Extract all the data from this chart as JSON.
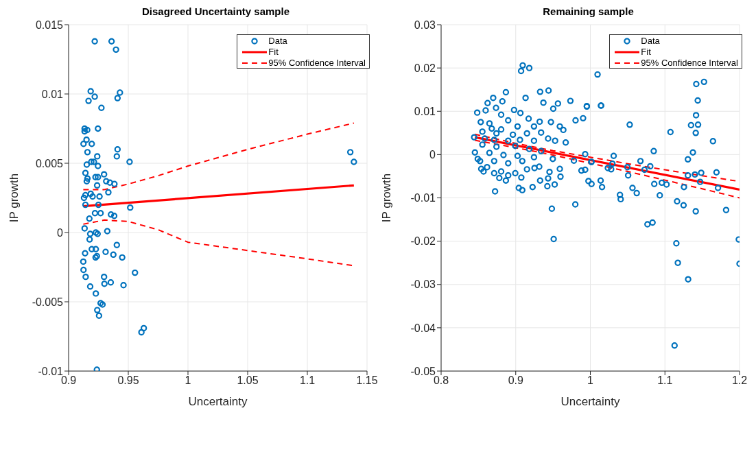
{
  "chart_data": [
    {
      "type": "scatter",
      "title": "Disagreed Uncertainty sample",
      "xlabel": "Uncertainty",
      "ylabel": "IP growth",
      "xlim": [
        0.9,
        1.15
      ],
      "xticks": [
        0.9,
        0.95,
        1,
        1.05,
        1.1,
        1.15
      ],
      "ylim": [
        -0.01,
        0.015
      ],
      "yticks": [
        -0.01,
        -0.005,
        0,
        0.005,
        0.01,
        0.015
      ],
      "grid": true,
      "legend": "top right",
      "series": [
        {
          "name": "Data",
          "marker": "circle",
          "color": "#0072bd",
          "x": [
            0.9219,
            0.936,
            0.9397,
            0.9185,
            0.9219,
            0.9167,
            0.9275,
            0.943,
            0.941,
            0.9134,
            0.9156,
            0.9134,
            0.9246,
            0.915,
            0.9125,
            0.9194,
            0.9158,
            0.924,
            0.941,
            0.9404,
            0.9511,
            0.9152,
            0.919,
            0.9212,
            0.9246,
            0.9141,
            0.9158,
            0.9152,
            0.9225,
            0.9246,
            0.9297,
            0.9315,
            0.9346,
            0.9384,
            0.9239,
            0.9333,
            0.9129,
            0.9141,
            0.9185,
            0.9201,
            0.9259,
            0.9141,
            0.925,
            0.9221,
            0.9268,
            0.9355,
            0.9382,
            0.9516,
            0.9174,
            0.9134,
            0.9228,
            0.9243,
            0.9181,
            0.9324,
            0.9176,
            0.9404,
            0.9194,
            0.9228,
            0.9237,
            0.9226,
            0.9138,
            0.931,
            0.9375,
            0.9449,
            0.9123,
            0.9125,
            0.9143,
            0.9297,
            0.93,
            0.9353,
            0.9556,
            0.946,
            0.9181,
            0.9228,
            0.9268,
            0.9284,
            0.924,
            0.9255,
            0.963,
            0.961,
            0.9237,
            1.136,
            1.139
          ],
          "values": [
            0.0138,
            0.0138,
            0.0132,
            0.0102,
            0.0098,
            0.0095,
            0.009,
            0.0101,
            0.0097,
            0.0075,
            0.0074,
            0.0073,
            0.0075,
            0.0067,
            0.0064,
            0.0064,
            0.0058,
            0.0055,
            0.006,
            0.0055,
            0.0051,
            0.0049,
            0.0051,
            0.0051,
            0.0048,
            0.0043,
            0.0039,
            0.0037,
            0.004,
            0.004,
            0.0042,
            0.0037,
            0.0036,
            0.0035,
            0.0034,
            0.0029,
            0.0025,
            0.0027,
            0.0028,
            0.0026,
            0.0026,
            0.002,
            0.002,
            0.0014,
            0.0014,
            0.0013,
            0.0012,
            0.0018,
            0.001,
            0.0003,
            0,
            -0.0001,
            -0.0001,
            0.0001,
            -0.0005,
            -0.0009,
            -0.0012,
            -0.0012,
            -0.0017,
            -0.0018,
            -0.0015,
            -0.0014,
            -0.0016,
            -0.0018,
            -0.0021,
            -0.0027,
            -0.0032,
            -0.0032,
            -0.0037,
            -0.0036,
            -0.0029,
            -0.0038,
            -0.0039,
            -0.0044,
            -0.0051,
            -0.0052,
            -0.0056,
            -0.006,
            -0.0069,
            -0.0072,
            -0.0099,
            0.0058,
            0.0051
          ]
        },
        {
          "name": "Fit",
          "type": "line",
          "color": "#ff0000",
          "line_style": "solid",
          "x": [
            0.9123,
            1.139
          ],
          "values": [
            0.0019,
            0.0034
          ]
        },
        {
          "name": "95% Confidence Interval",
          "type": "line",
          "color": "#ff0000",
          "line_style": "dashed",
          "x": [
            0.9123,
            0.93,
            0.95,
            0.975,
            1,
            1.05,
            1.1,
            1.139
          ],
          "values": [
            0.0031,
            0.0031,
            0.0035,
            0.0041,
            0.0048,
            0.006,
            0.0071,
            0.0079
          ]
        },
        {
          "type": "line",
          "color": "#ff0000",
          "line_style": "dashed",
          "x": [
            0.9123,
            0.93,
            0.95,
            0.975,
            1,
            1.05,
            1.1,
            1.139
          ],
          "values": [
            0.0006,
            0.0009,
            0.0008,
            0.0002,
            -0.0007,
            -0.0013,
            -0.0019,
            -0.0024
          ]
        }
      ]
    },
    {
      "type": "scatter",
      "title": "Remaining sample",
      "xlabel": "Uncertainty",
      "ylabel": "IP growth",
      "xlim": [
        0.8,
        1.2
      ],
      "xticks": [
        0.8,
        0.9,
        1,
        1.1,
        1.2
      ],
      "ylim": [
        -0.05,
        0.03
      ],
      "yticks": [
        -0.05,
        -0.04,
        -0.03,
        -0.02,
        -0.01,
        0,
        0.01,
        0.02,
        0.03
      ],
      "grid": true,
      "legend": "top right",
      "series": [
        {
          "name": "Data",
          "marker": "circle",
          "color": "#0072bd",
          "x": [
            0.9094,
            0.9072,
            0.9182,
            0.8868,
            0.8698,
            0.8623,
            0.8821,
            0.9132,
            0.9327,
            0.944,
            0.9371,
            0.9566,
            0.9503,
            0.9733,
            0.9953,
            1.0142,
            0.8484,
            0.8597,
            0.8736,
            0.8978,
            0.9063,
            0.8805,
            0.9173,
            0.9321,
            0.9472,
            0.9802,
            0.9903,
            0.9591,
            0.9638,
            0.967,
            0.8531,
            0.8648,
            0.8899,
            0.9025,
            0.9245,
            0.8679,
            0.8805,
            0.8553,
            0.8742,
            0.8962,
            0.9151,
            0.934,
            0.8443,
            0.8585,
            0.8711,
            0.8899,
            0.9057,
            0.9245,
            0.9434,
            0.9528,
            0.8553,
            0.8742,
            0.8994,
            0.9182,
            0.934,
            0.8453,
            0.8648,
            0.8836,
            0.9025,
            0.9245,
            0.9497,
            0.8491,
            0.8522,
            0.8711,
            0.8899,
            0.9088,
            0.8538,
            0.8569,
            0.8616,
            0.8711,
            0.8805,
            0.8899,
            0.8994,
            0.9151,
            0.9252,
            0.9315,
            0.9453,
            0.9591,
            0.978,
            0.9931,
            1.0016,
            0.9881,
            0.9931,
            0.878,
            0.8868,
            0.9075,
            0.9327,
            0.9434,
            0.96,
            0.9522,
            0.9975,
            1.0016,
            1.0138,
            1.0157,
            0.8723,
            0.9041,
            0.9088,
            0.9226,
            0.9424,
            0.9484,
            0.9799,
            0.9509,
            1.0097,
            0.9953,
            1.0145,
            1.0528,
            1.1074,
            1.142,
            1.1524,
            1.144,
            1.1417,
            1.135,
            1.1444,
            1.1413,
            1.1644,
            1.085,
            1.1375,
            1.1308,
            1.0313,
            1.0013,
            1.0296,
            1.0235,
            1.0279,
            1.0672,
            1.0497,
            1.0803,
            1.0726,
            1.0507,
            1.1308,
            1.1402,
            1.1486,
            1.1691,
            1.1472,
            1.0565,
            1.0622,
            1.0397,
            1.0407,
            1.0857,
            1.0958,
            1.1022,
            1.0931,
            1.1255,
            1.1711,
            1.1163,
            1.125,
            1.1413,
            1.182,
            1.0766,
            1.0834,
            1.1153,
            1.1173,
            1.1311,
            1.199,
            1.2,
            1.1129
          ],
          "values": [
            0.0206,
            0.0193,
            0.02,
            0.0144,
            0.0131,
            0.0119,
            0.0123,
            0.0131,
            0.0145,
            0.0148,
            0.012,
            0.0118,
            0.0106,
            0.0124,
            0.0111,
            0.0113,
            0.0097,
            0.0102,
            0.0108,
            0.0103,
            0.0096,
            0.0092,
            0.0083,
            0.0076,
            0.0075,
            0.0079,
            0.0084,
            0.0065,
            0.0057,
            0.0028,
            0.0075,
            0.0072,
            0.0079,
            0.0065,
            0.0065,
            0.006,
            0.0058,
            0.0053,
            0.0049,
            0.0046,
            0.0049,
            0.0051,
            0.004,
            0.0037,
            0.0034,
            0.0032,
            0.0034,
            0.0032,
            0.0037,
            0.0032,
            0.0023,
            0.0018,
            0.002,
            0.0013,
            0.0008,
            0.0005,
            0.0004,
            -0.0001,
            -0.0003,
            -0.0006,
            -0.001,
            -0.001,
            -0.0015,
            -0.0015,
            -0.002,
            -0.0015,
            -0.0033,
            -0.0039,
            -0.0029,
            -0.0043,
            -0.0039,
            -0.0048,
            -0.0043,
            -0.0034,
            -0.0031,
            -0.0028,
            -0.004,
            -0.0033,
            -0.0014,
            0.0001,
            -0.0017,
            -0.0037,
            -0.0035,
            -0.0054,
            -0.006,
            -0.0053,
            -0.006,
            -0.0055,
            -0.0051,
            -0.0069,
            -0.0061,
            -0.0068,
            -0.006,
            -0.0075,
            -0.0085,
            -0.0077,
            -0.0082,
            -0.0075,
            -0.0073,
            -0.0125,
            -0.0115,
            -0.0195,
            0.0185,
            0.0112,
            0.0113,
            0.0069,
            0.0052,
            0.0163,
            0.0168,
            0.0125,
            0.0091,
            0.0068,
            0.0069,
            0.005,
            0.0031,
            0.0008,
            0.0005,
            -0.0011,
            -0.0003,
            -0.0017,
            -0.0021,
            -0.0031,
            -0.0034,
            -0.0015,
            -0.0029,
            -0.0027,
            -0.0035,
            -0.0048,
            -0.0048,
            -0.0046,
            -0.0042,
            -0.0041,
            -0.0063,
            -0.0077,
            -0.0089,
            -0.0093,
            -0.0103,
            -0.0068,
            -0.0065,
            -0.0069,
            -0.0094,
            -0.0075,
            -0.0077,
            -0.0108,
            -0.0117,
            -0.0131,
            -0.0128,
            -0.0161,
            -0.0157,
            -0.0205,
            -0.025,
            -0.0288,
            -0.0196,
            -0.0252,
            -0.0441
          ]
        },
        {
          "name": "Fit",
          "type": "line",
          "color": "#ff0000",
          "line_style": "solid",
          "x": [
            0.8453,
            1.2
          ],
          "values": [
            0.004,
            -0.0081
          ]
        },
        {
          "name": "95% Confidence Interval",
          "type": "line",
          "color": "#ff0000",
          "line_style": "dashed",
          "x": [
            0.8453,
            0.9,
            0.95,
            1,
            1.05,
            1.1,
            1.15,
            1.2
          ],
          "values": [
            0.0047,
            0.0026,
            0.0009,
            -0.0006,
            -0.0021,
            -0.0035,
            -0.0049,
            -0.0062
          ]
        },
        {
          "type": "line",
          "color": "#ff0000",
          "line_style": "dashed",
          "x": [
            0.8453,
            0.9,
            0.95,
            1,
            1.05,
            1.1,
            1.15,
            1.2
          ],
          "values": [
            0.0033,
            0.0016,
            -0.0001,
            -0.002,
            -0.0039,
            -0.0059,
            -0.0079,
            -0.01
          ]
        }
      ]
    }
  ]
}
